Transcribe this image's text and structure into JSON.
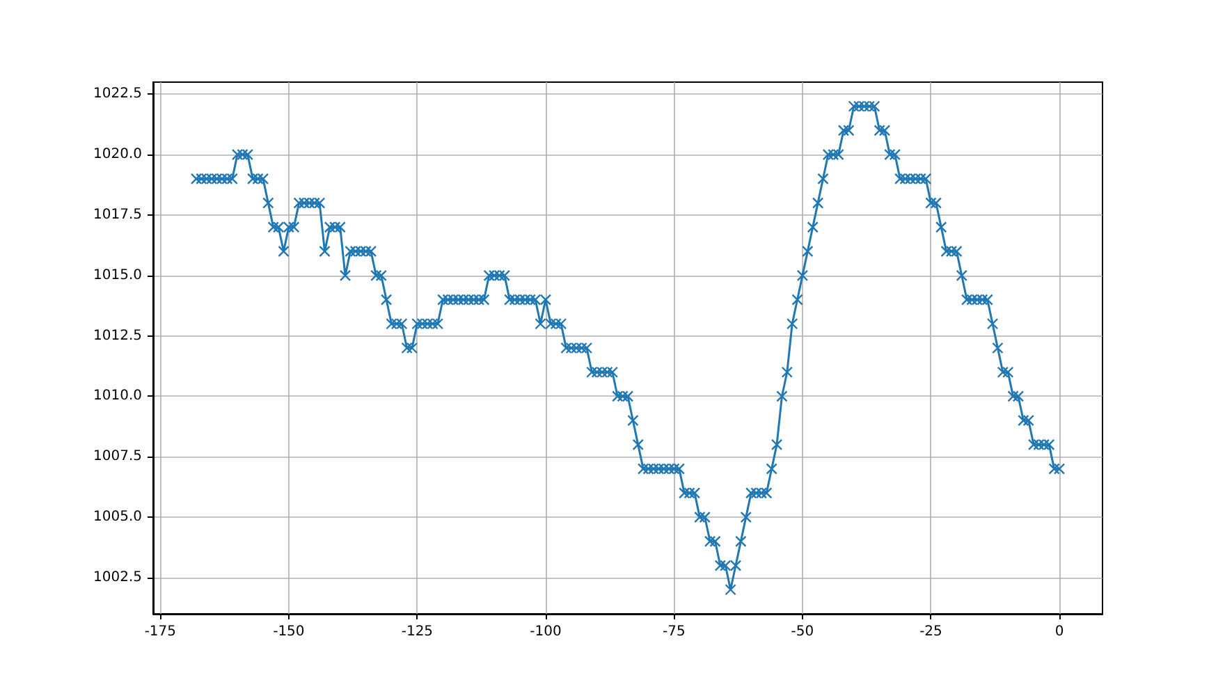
{
  "chart_data": {
    "type": "line",
    "color": "#1f77b4",
    "marker": "cross",
    "line_style": "solid",
    "grid": true,
    "x": [
      -168,
      -167,
      -166,
      -165,
      -164,
      -163,
      -162,
      -161,
      -160,
      -159,
      -158,
      -157,
      -156,
      -155,
      -154,
      -153,
      -152,
      -151,
      -150,
      -149,
      -148,
      -147,
      -146,
      -145,
      -144,
      -143,
      -142,
      -141,
      -140,
      -139,
      -138,
      -137,
      -136,
      -135,
      -134,
      -133,
      -132,
      -131,
      -130,
      -129,
      -128,
      -127,
      -126,
      -125,
      -124,
      -123,
      -122,
      -121,
      -120,
      -119,
      -118,
      -117,
      -116,
      -115,
      -114,
      -113,
      -112,
      -111,
      -110,
      -109,
      -108,
      -107,
      -106,
      -105,
      -104,
      -103,
      -102,
      -101,
      -100,
      -99,
      -98,
      -97,
      -96,
      -95,
      -94,
      -93,
      -92,
      -91,
      -90,
      -89,
      -88,
      -87,
      -86,
      -85,
      -84,
      -83,
      -82,
      -81,
      -80,
      -79,
      -78,
      -77,
      -76,
      -75,
      -74,
      -73,
      -72,
      -71,
      -70,
      -69,
      -68,
      -67,
      -66,
      -65,
      -64,
      -63,
      -62,
      -61,
      -60,
      -59,
      -58,
      -57,
      -56,
      -55,
      -54,
      -53,
      -52,
      -51,
      -50,
      -49,
      -48,
      -47,
      -46,
      -45,
      -44,
      -43,
      -42,
      -41,
      -40,
      -39,
      -38,
      -37,
      -36,
      -35,
      -34,
      -33,
      -32,
      -31,
      -30,
      -29,
      -28,
      -27,
      -26,
      -25,
      -24,
      -23,
      -22,
      -21,
      -20,
      -19,
      -18,
      -17,
      -16,
      -15,
      -14,
      -13,
      -12,
      -11,
      -10,
      -9,
      -8,
      -7,
      -6,
      -5,
      -4,
      -3,
      -2,
      -1,
      0
    ],
    "values": [
      1019,
      1019,
      1019,
      1019,
      1019,
      1019,
      1019,
      1019,
      1020,
      1020,
      1020,
      1019,
      1019,
      1019,
      1018,
      1017,
      1017,
      1016,
      1017,
      1017,
      1018,
      1018,
      1018,
      1018,
      1018,
      1016,
      1017,
      1017,
      1017,
      1015,
      1016,
      1016,
      1016,
      1016,
      1016,
      1015,
      1015,
      1014,
      1013,
      1013,
      1013,
      1012,
      1012,
      1013,
      1013,
      1013,
      1013,
      1013,
      1014,
      1014,
      1014,
      1014,
      1014,
      1014,
      1014,
      1014,
      1014,
      1015,
      1015,
      1015,
      1015,
      1014,
      1014,
      1014,
      1014,
      1014,
      1014,
      1013,
      1014,
      1013,
      1013,
      1013,
      1012,
      1012,
      1012,
      1012,
      1012,
      1011,
      1011,
      1011,
      1011,
      1011,
      1010,
      1010,
      1010,
      1009,
      1008,
      1007,
      1007,
      1007,
      1007,
      1007,
      1007,
      1007,
      1007,
      1006,
      1006,
      1006,
      1005,
      1005,
      1004,
      1004,
      1003,
      1003,
      1002,
      1003,
      1004,
      1005,
      1006,
      1006,
      1006,
      1006,
      1007,
      1008,
      1010,
      1011,
      1013,
      1014,
      1015,
      1016,
      1017,
      1018,
      1019,
      1020,
      1020,
      1020,
      1021,
      1021,
      1022,
      1022,
      1022,
      1022,
      1022,
      1021,
      1021,
      1020,
      1020,
      1019,
      1019,
      1019,
      1019,
      1019,
      1019,
      1018,
      1018,
      1017,
      1016,
      1016,
      1016,
      1015,
      1014,
      1014,
      1014,
      1014,
      1014,
      1013,
      1012,
      1011,
      1011,
      1010,
      1010,
      1009,
      1009,
      1008,
      1008,
      1008,
      1008,
      1007,
      1007
    ],
    "xlim": [
      -176.4,
      8.4
    ],
    "xticks": [
      -175,
      -150,
      -125,
      -100,
      -75,
      -50,
      -25,
      0
    ],
    "ylim": [
      1001,
      1023
    ],
    "yticks": [
      1002.5,
      {
        "value": 1005,
        "label": "1005.0"
      },
      1007.5,
      {
        "value": 1010,
        "label": "1010.0"
      },
      1012.5,
      {
        "value": 1015,
        "label": "1015.0"
      },
      1017.5,
      {
        "value": 1020,
        "label": "1020.0"
      },
      1022.5
    ]
  }
}
